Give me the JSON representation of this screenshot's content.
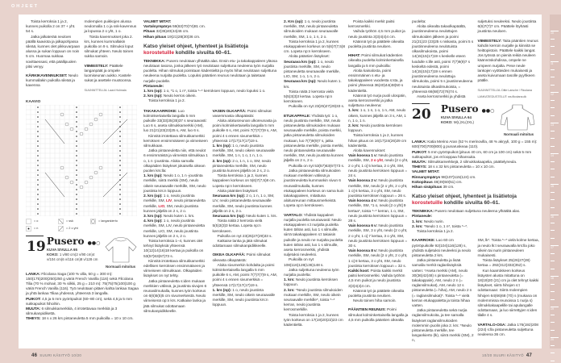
{
  "section": "OHJEET",
  "left": {
    "col1": [
      {
        "t": "Toista kerroksia 1 ja 2, kunnes puikolla 2 on 37 + yht. 54 s.",
        "ind": true
      },
      {
        "t": "Jatka jalkaterää neuloen päällä kaaviota ja jalkapohjassa sileää, kunnes olet pikkuvarpaan alussa ja sukan loppuun on noin 5 cm. Huomaa sukkaa sovittaessasi, että päällipuolen pitsi venyy.",
        "ind": true
      },
      {
        "b": "KÄRKIKAVENNUKSET:",
        "t": " Neulo kummallakin puikolla sileää ja kavenna",
        "gap": true
      }
    ],
    "col2": [
      {
        "t": "molempien puikkojen alussa neulomalla 1 o ja ssk-kavennus ja lopussa 2 o yht, 1 o."
      },
      {
        "t": "Toista kavennukset joka 2. krs, kunnes kummallakin puikolla on 9 s. Silmukoi loput silmukat yhteen. Neulo toinen sukka samoin.",
        "ind": true
      },
      {
        "b": "VIIMEISTELY:",
        "t": " Päättele langanpäät ja ompele luomiseunan aukko. Kastele sukat ja asettele muotoonsa.",
        "gap": true
      },
      {
        "s": "SUUNNITTELIJA: Laavi Holmala",
        "gap": true
      }
    ],
    "chart_title": "KAAVIO",
    "legend": [
      {
        "symbol": "empty-square",
        "label": "= o"
      },
      {
        "symbol": "dot-square",
        "label": "= n"
      },
      {
        "symbol": "ssk-diagonal",
        "label": "= ssk"
      },
      {
        "symbol": "k2tog-diagonal",
        "label": "= 2 o yht"
      },
      {
        "symbol": "circle",
        "label": "= langankierto"
      }
    ],
    "pattern19": {
      "number": "19",
      "title": "Pusero",
      "difficulty": "●●○",
      "photo_ref": "KUVA SIVULLA 65",
      "size_label": "KOKO:",
      "sizes": "1 v/80 cm(2 v/90 cm)4 v/104 cm(6 v/116 cm)8 v/128 cm",
      "fit": "Normaali mitoitus"
    },
    "yarn19": [
      {
        "b": "LANKA:",
        "t": " Filcolana Saga (100 % villa, 50 g = 300 m): 150(175)200(250)250 g väriä French Vanilla (116) sekä Filcolana Tilia (70 % mohair, 30 % silkki, 25 g = 210 m): 75(75)75(100)100 g väriä French Vanilla (116). Työ neulotaan pitäen kahta lankaa Sagaa ja yhtä lankaa Tiliaa yhdessä, yhteensä 3 langalla."
      },
      {
        "b": "PUIKOT:",
        "t": " 4,5 ja 5 mm pyöröpuikot (60–80 cm), sekä 4,5 ja 5 mm sukkapuikot hihoihin."
      },
      {
        "b": "MUUTA:",
        "t": " 6 silmukkamerkkiä, 4 irrotettavaa merkkiä ja 3 silmukanpidikettä."
      },
      {
        "b": "TIHEYS:",
        "t": " 18 s x 26 krs pintaneuletta 5 mm puikoilla = 10 x 10 cm."
      }
    ],
    "col3_top": [
      {
        "b": "VALMIIT MITAT:"
      },
      {
        "b": "Vartaloympärys",
        "t": " 59(63)70(74)81 cm."
      },
      {
        "b": "Pituus",
        "t": " 32(36)40(44)46 cm."
      },
      {
        "b": "Hihan pituus",
        "t": " 19(21)28(30)36 cm."
      }
    ],
    "note": {
      "pre": "Katso yleiset ohjeet, lyhenteet ja lisätietoja ",
      "red": "korostetuille",
      "post": " kohdille sivuilta 60–61."
    },
    "col3_tech": [
      {
        "b": "TEKNIIKKA:",
        "t": " Pusero neulotaan ylhäältä alas. Ensin etu- ja takakappaleen yläosa neulotaan tasona, jonka jälkeen työ neulotaan suljettuna neuleena työn nurjalta puolelta. Hihan silmukat poimitaan kädentieltä ja myös hihat neulotaan suljettuna neuleena nurjalta puolelta. Lopuksi pääntien reunus neulotaan ja taitetaan nurjalle puolelle."
      },
      {
        "b": "Pintaneule:"
      },
      {
        "b": "1. krs (op):",
        "t": " 1 o, *1 o, 1 n*, toista *–* kerroksen loppuun, neulo lopuksi 1 o."
      },
      {
        "b": "2. krs (np):",
        "t": " Neulo kerros oikein."
      },
      {
        "t": "Toista kerroksia 1 ja 2.",
        "ind": true
      }
    ],
    "col3a": [
      {
        "b": "TAKAKAARROKE:",
        "t": " Luo kolminkertaisella langalla 5 mm puikolle 33(33)35(35)37 s seuraavasti: Luo 6 s, aseta silmukkamerkki (AM), luo 21(21)23(23)25 s, AM, luo 6 s."
      },
      {
        "t": "Kiinnitä irrotettava silmukkamerkki kerroksen ensimmäiseen ja viimeiseen silmukkaan.",
        "ind": true
      },
      {
        "t": "Jatka pintaneuletta niin, että neulot 6 ensimmäistä ja viimeistä silmukkaa 1 o, 1 n -joustinta. Aloita samalla olkapäiden lisäykset jokaisella oikean puolen krs:lla:",
        "ind": true
      },
      {
        "b": "1. krs (np):",
        "t": " Neulo 1 o, 1 n -joustinta merkille, siirrä merkki (SM), neulo oikein seuraavalle merkille, SM, neulo joustinta krs:n loppuun."
      },
      {
        "b": "2. krs (op):",
        "t": " 1 o, neulo joustinta merkille, SM, ",
        "r": "LIV",
        "t2": ", neulo pintaneuletta merkille, ",
        "r2": "LIO",
        "t3": ", SM, neulo joustinta kunnes jäljellä on 2 s, 2 o."
      },
      {
        "b": "3. krs (np):",
        "t": " Neulo kuten 1. krs."
      },
      {
        "b": "4. krs (op):",
        "t": " 1 o, neulo joustinta merkille, SM, LIV, neulo pintaneuletta merkille, LIO, SM, neulo joustinta kunnes jäljellä on 2 s, 2 o."
      },
      {
        "t": "Toista kerroksia 1–4, kunnes olet tehnyt lisäyksiä yhteensä 10(12)14(16)18 kertaa ja puikolla on 53(57)63(67)73 s.",
        "ind": true
      },
      {
        "t": "Kiinnitä irrotettava silmukkamerkki edellisen kerroksen ensimmäiseen ja viimeiseen silmukkaan. Olkapäiden lisäykset on nyt tehty.",
        "ind": true
      },
      {
        "t": "Jatka pintaneuletta s:iden mukaan merkkien välissä, ja joustinta sivujen 6 reunasilmukalla, kunnes työn korkeus on 6(6)5(5)5 cm sivumerkeistä. Neulo viimeisenä op:n krs. Katkaise lanka ja jätä silmukat odottamaan silmukanpidikkeelle.",
        "ind": true
      }
    ],
    "col3b": [
      {
        "b": "VASEN OLKAPÄÄ:",
        "t": " Poimi silmukat vasemmasta olkapäästä:"
      },
      {
        "t": "Aloita aloitusreunan ulkoreunasta ja poimi kolminkertaisella langalla 5 mm puikolle 6 s, AM, poimi 7(7)7(7)9 s, AM, poimi 4 s ennen sivumerkkiä = yhteensä 17(17)17(17)19 s.",
        "ind": true
      },
      {
        "b": "1. krs (np):",
        "t": " 1 o, neulo joustinta merkille, SM, neulo oikein seuraavalle merkille, SM, 1 n, 1 o, 1 n, 1 o."
      },
      {
        "b": "2. krs (op):",
        "t": " 2 o, 1 n, 1 o, SM, neulo pintaneuletta merkille, SM, neulo joustinta kunnes jäljellä on 2 s, 2 o."
      },
      {
        "t": "Toista kerroksia 1 ja 2, kunnes kappaleen korkeus on 5(6)7(7,5)8 cm. Lopeta np:n kerrokseen.",
        "ind": true
      },
      {
        "t": "Aloita pääntien lisäykset:",
        "ind": true
      },
      {
        "b": "Seuraava krs (op):",
        "t": " 2 o, 1 n, 1 o, SM, LIV, neulo pintaneuletta seuraavalle merkille, SM, neulo joustinta kunnes jäljellä on 2 s, 2 o."
      },
      {
        "b": "Seuraava krs (np):",
        "t": " Neulo kuten 1. krs."
      },
      {
        "t": "Toista näitä 2 kerrosta vielä 5(5)3(3)3 kertaa. Lopeta np:n kerrokseen.",
        "ind": true
      },
      {
        "t": "Puikolla on nyt 23(25)27(29)33 s.",
        "ind": true
      },
      {
        "t": "Katkaise lanka ja jätä silmukat odottamaan silmukanpidikkeelle.",
        "ind": true
      },
      {
        "b": "OIKEA OLKAPÄÄ:",
        "t": " Poimi silmukat oikeasta olkapäästä:",
        "gap": true
      },
      {
        "t": "Aloita sivumerkin kohdalta ja poimi kolminkertaisella langalla 5 mm puikolle 6 s, AM, poimi 7(7)7(7)9 s, AM, poimi 4 s ennen sivumerkkiä = yhteensä 17(17)17(17)19 s.",
        "ind": true
      },
      {
        "b": "1. krs (np):",
        "t": " 1 o, neulo joustinta merkille, SM, neulo oikein seuraavalle merkille, SM, neulo joustinta krs:n loppuun."
      }
    ]
  },
  "right": {
    "col4": [
      {
        "b": "2. Krs (op):",
        "t": " 1 o, neulo joustinta merkille, SM, neulo pintaneuletta silmukoiden mukaan seuraavalle merkille, SM, 1 o, 1 n, 2 o."
      },
      {
        "t": "Toista kerroksia 1 ja 2, kunnes etukappaleen korkeus on 5(6)7(7,5)8 cm. Lopeta np:n kerrokseen.",
        "ind": true
      },
      {
        "t": "Aloita pääntien lisäykset:",
        "ind": true
      },
      {
        "b": "Seuraava krs (op):",
        "t": " 1 o, neulo joustinta merkille, SM, neulo pintaneuletta seuraavalle merkille, LIO, SM, 1 o, 1 n, 2 o."
      },
      {
        "b": "Seuraava krs (np):",
        "t": " Neulo kuten 1. krs."
      },
      {
        "t": "Toista näitä 2 kerrosta vielä 5(5)3(3)3 kertaa. Lopeta np:n kerrokseen.",
        "ind": true
      },
      {
        "t": "Puikoilla on nyt 23(25)27(29)33 s.",
        "ind": true
      },
      {
        "b": "ETUKAPPALE:",
        "t": " Yhdistä työ: 1 o, neulo joustinta merkille, SM, neulo pintaneuletta silmukoiden mukaan seuraavalle merkille, poista merkki, jatka pintaneuletta silmukoiden mukaan, luo 7(7)9(9)7 s, jatka pintaneuletta merkille, poista merkki, neulo pintaneuletta seuraavalle merkille, SM, neulo joustinta kunnes jäljellä on 2 s, 2 o.",
        "gap": true
      },
      {
        "t": "Puikoilla on nyt 53(57)63(67)73 s.",
        "ind": true
      },
      {
        "t": "Jatka pintaneuletta silmukoiden mukaan merkkien välissä ja joustinneuletta kummankin sivun 6 reunasilmukalla, kunnes etukappaleen korkeus on sama kuin takakappaleen, mitattuna aloitusreunan mittausmerkeistä. Lopeta op:n kerrokseen.",
        "ind": true
      },
      {
        "b": "VARTALO:",
        "t": " Yhdistä kappaleet nurjalla puolella seuraavasti: Neulo etukappaleen s:t nurjalta puolelta kuten tähän asti, luo 1 s silmuille, siirrä takakappaleen s:t takaisin puikolle ja neulo ne nurjalta puolelta kuten tähän asti, luo 1 s silmuille, aseta kerrosmerkki, yhdistä suljetuksi neuleeksi.",
        "gap": true
      },
      {
        "t": "Puikoilla on nyt 108(116)128(136)148 s.",
        "ind": true
      },
      {
        "t": "Jatka suljettuna neuleena työn nurjalta puolelta:",
        "ind": true
      },
      {
        "b": "1. krs:",
        "t": " Neulo joustinta kerroksen loppuun."
      },
      {
        "b": "2. krs:",
        "t": " *Neulo joustinta silmukoiden mukaan merkille, SM, neulo oikein seuraavalle merkille*, toista *–* kerran, neulo joustinta kerrosmerkille."
      },
      {
        "t": "Toista kerroksia 1 ja 2, kunnes työn korkeus on 17(19)20(22)23 cm kädentieltä.",
        "ind": true
      }
    ],
    "col5": [
      {
        "t": "Poista kaikki merkit paitsi kerrosmerkki.",
        "ind": true
      },
      {
        "t": "Vaihda työhön 4,5 mm puikot ja neulo joustinta 3(3)4(4)4 cm.",
        "ind": true
      },
      {
        "t": "Käännä työ ja päättele oikealta puolelta joustinta neuloen.",
        "ind": true
      },
      {
        "b": "HIHAT:",
        "t": " Poimi silmukat kädentien oikealta puolelta kolminkertaisella langalla ja 5 mm puikoilla:",
        "gap": true
      },
      {
        "t": "Aloita kainalosta, poimi ensimmäinen s etu- ja takakappaleen vuodesta s:sta, ja poimi yhteensä 36(40)44(48)50 s kädentieltä.",
        "ind": true
      },
      {
        "t": "Käännä työ nurja puoli ulospäin, aseta kerrosmerkki ja jatka suljettuna neuleena:",
        "ind": true
      },
      {
        "b": "1. krs:",
        "t": " 1 o, 1 n, 1 o, 1 n, AM, neulo oikein, kunnes jäljellä on 3 s, AM, 1 n, 1 o, 1 n."
      },
      {
        "b": "2. krs:",
        "t": " Neulo joustinta kerroksen loppuun."
      },
      {
        "t": "Toista kerroksia 1 ja 2, kunnes hihan pituus on 16(17)24(26)29 cm kädentieltä.",
        "ind": true
      },
      {
        "t": "Aloita kavennukset:",
        "ind": true
      },
      {
        "b": "Vain koossa 1 v:",
        "t": " Neulo joustinta merkille, SM, ",
        "r": "2 o yht",
        "t2": ", neulo [2 o yht, 2 o yht, 1 o] 5 kertaa, 2 o yht, SM, neulo joustinta kerroksen loppuun = 24 s."
      },
      {
        "b": "Vain koossa 2 v:",
        "t": " Neulo joustinta merkille, SM, neulo [2 o yht, 2 o yht, 1 o] 6 kertaa, 3 o yht, SM, neulo joustinta kerroksen loppuun = 26 s."
      },
      {
        "b": "Vain koossa 4 v:",
        "t": " Neulo joustinta merkille, SM, *1 o, neulo [2 o yht] 9 kertaa*, toista *–* kerran, 1 o, SM, neulo joustinta kerroksen loppuun = 28 s."
      },
      {
        "b": "Vain koossa 6 v:",
        "t": " Neulo joustinta merkille, SM, 3 o yht, neulo [2 o yht, 2 o yht, 1 o] 7 kertaa, 3 o yht, SM, neulo joustinta kerroksen loppuun = 30 s."
      },
      {
        "b": "Vain koossa 8 v:",
        "t": " Neulo joustinta merkille, SM, neulo [2 o yht, 2 o yht, 1 o] 8 kertaa, 3 o yht, SM, neulo joustinta kerroksen loppuun = 32 s."
      },
      {
        "b": "Kaikki koot:",
        "t": " Poista kaikki merkit paitsi kerrosmerkki. Vaihda työhön 4,5 mm puikot ja neulo joustinta 3(3)4(4)4 cm."
      },
      {
        "t": "Käännä työ ja päättele oikealta puolelta joustinta neuloen.",
        "ind": true
      },
      {
        "t": "Neulo toinen hiha samoin.",
        "ind": true
      },
      {
        "b": "PÄÄNTIEN REUNUS:",
        "t": " Poimi silmukat kolminkertaisella langalla ja 4,5 mm puikolla pääntien oikealta",
        "gap": true
      }
    ],
    "col6": [
      {
        "t": "puolelta:"
      },
      {
        "t": "Aloita oikealta takaolkapäältä, joustinneuleena neulottujen silmukoiden jälkeen ja poimi 21(21)23 (23)25 s niskasta, poimi 5 s joustinneuleena neulotuista olkasilmukoista, poimi 14(15)15(17)19 s keskelle eteen luodulle s:ille asti, poimi 7(7)9(9)7 s keskeltä edestä, poimi 14(15)15(17)19 s ennen joustinneuleena neulottuja silmukoita, poimi 5 s joustinneuleena neulotuista olkasilmukoista, = yhteensä 66(68)72(76)74 s.",
        "ind": true
      },
      {
        "t": "Aseta kerrosmerkki ja yhdistä",
        "ind": true
      }
    ],
    "col7": [
      {
        "t": "suljetuksi neuleeksi. Neulo joustinta 6(6)7(7)7 cm. Päättele löyhästi joustinta neuloen."
      },
      {
        "b": "VIIMEISTELY:",
        "t": " Taita pääntien reunus kahdin kerroin nurjalle ja kiinnitä se heittopistoin. Päättele kaikki langat. Jos työssä on pieniä reikiä neuleen käännöskohdissa, ompele ne umpeen nurjalta. Pese neule lankojen vyötteiden mukaisesti ja aseta kuivumaan tasolle pyyhkeen päälle.",
        "gap": true
      },
      {
        "s": "SUUNNITTELIJA: Ditte Larsche / Filcolana",
        "gap": true
      },
      {
        "s": "LANKATIEDUSTELUT: ws.filcolana.dk"
      }
    ],
    "pattern20": {
      "number": "20",
      "title": "Pusero",
      "difficulty": "●●○",
      "photo_ref": "KUVA SIVULLA 64",
      "size_label": "KOKO:",
      "sizes": "M(L)XL(2XL)",
      "fit": "Normaali mitoitus"
    },
    "yarn20": [
      {
        "b": "LANKA:",
        "t": " Katia Merino Aran (52 % merinovilla, 48 % akryyli, 100 g = 155 m): 600(700)700(800) g punaruskeaa (110)."
      },
      {
        "b": "PUIKOT:",
        "t": " 5 mm pyöröpuikot (pituus 40 cm, 60 cm ja 100 cm) sekä 5 mm sukkapuikot, jos et looppaa hihansuita."
      },
      {
        "b": "MUUTA:",
        "t": " Silmukkamerkkejä, 2 silmukkakaapelia, päättelyneula."
      },
      {
        "b": "TIHEYS:",
        "t": " 18 s x 32 krs pintaneuletta = 10 x 10 cm."
      },
      {
        "b": "VALMIIT MITAT:"
      },
      {
        "b": "Rinnanympärys",
        "t": " 98(107)115(124) cm."
      },
      {
        "b": "Kokopituus",
        "t": " 48(49)50(51) cm."
      },
      {
        "b": "Hihan sisäpituus",
        "t": " 39 cm."
      }
    ],
    "note": {
      "pre": "Katso yleiset ohjeet, lyhenteet ja lisätietoja ",
      "red": "korostetuille",
      "post": " kohdille sivuilta 60–61."
    },
    "tech20": [
      {
        "b": "TEKNIIKKA:",
        "t": " Pusero neulotaan suljettuna neuleena ylhäältä alas."
      },
      {
        "b": "Pintaneule:"
      },
      {
        "b": "1. krs:",
        "t": " Neulo nurin."
      },
      {
        "b": "2. krs:",
        "t": " *Neulo 1 o, 1 n*, toista *–*."
      },
      {
        "t": "Toista kerroksia 1 ja 2.",
        "ind": true
      }
    ],
    "col8": [
      {
        "b": "KAARROKE:",
        "t": " Luo 60 cm pyöröpuikolle 92(104)116(128) s, yhdistä suljetuksi neuleeksi ja neulo pintaneuletta 2 krs."
      },
      {
        "t": "Jatka pintaneuletta ja lisää samalla merkit raglanlisäyksiä varten: *Aseta merkki (AM), neulo 30(36)42(48) s pintaneuletta (= takakappale), AM, neulo 2 n (= raglansilmukat), AM, neulo 12 s pintaneuletta (= hiha), AM, neulo 2 n (= raglansilmukat)*. Toista *–* vielä kerran etukappaletta ja toista hihaa varten.",
        "ind": true
      },
      {
        "t": "Jatka pintaneuletta sekä nurjia raglansilmukoita, ja tee samalla lisäykset raglansilmukoiden molemmin puolin joka 2. krs: *Neulo pintaneuletta merkille, tee langankierto (lk), siirrä merkki (SM), 2 n,",
        "ind": true
      }
    ],
    "col9": [
      {
        "t": "SM, lk*. Toista *–* vielä kolme kertaa, ja neulo lk:t seuraavalla krs:lla joko oikein tai nurin pintaneuleen mukaisesti."
      },
      {
        "t": "Toista lisäykset 25(26)27(28) kertaa = 292(312)332(352) s.",
        "ind": true
      },
      {
        "t": "Kun kaarrokkeen korkeus lisäysten alusta mitattuna on 18(19)20 (21) cm ja olet tehnyt kaikki lisäykset, siirrä hihojen s:t odottamaan: Siirrä molempien hihojen 64(66)68 (70) s (mukana on molemmissa reunoissa 1 nurja s) silmukkakaapelille tai apulangalle odottamaan, ja luo siirrettyjen s:iden tilalle 4 s.",
        "ind": true
      },
      {
        "b": "VARTALO-OSA:",
        "t": " Jatka 176(192)208 (224) s:lla pintaneuletta suljettuna neuleena 36 cm.",
        "gap": true
      }
    ]
  },
  "footer": {
    "left_page": "46",
    "left_mag": "SUURI KÄSITYÖ 10/20",
    "right_mag": "10/20 SUURI KÄSITYÖ",
    "right_page": "47"
  },
  "ruler_labels": [
    "10",
    "11",
    "12",
    "13",
    "14",
    "15",
    "16",
    "17",
    "18",
    "19",
    "20"
  ],
  "colors": {
    "background": "#e8d3cd",
    "page": "#ffffff",
    "accent_red": "#d6203a",
    "ruler": "#dcc3bc"
  }
}
